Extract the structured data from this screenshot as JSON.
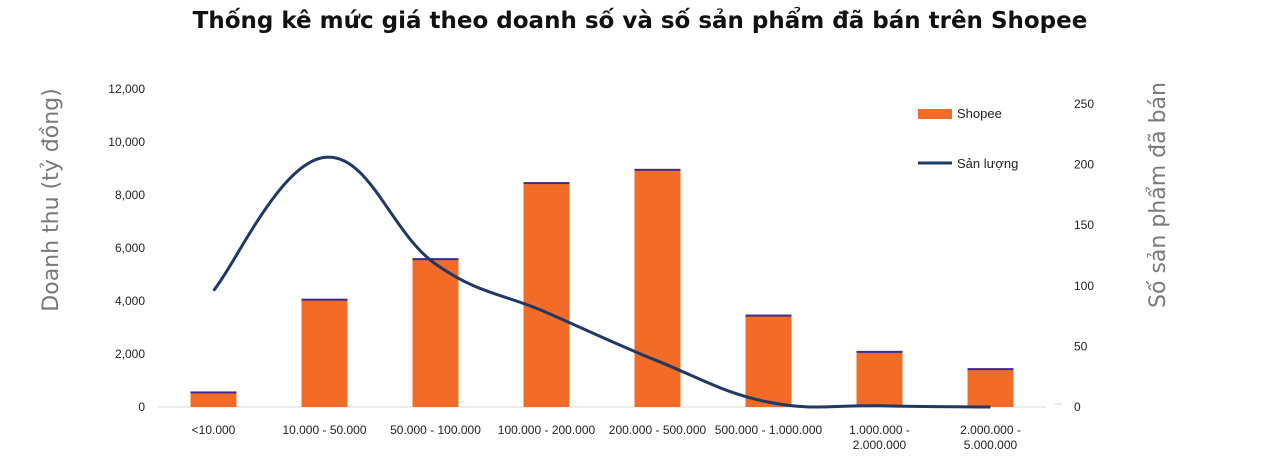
{
  "chart_data": {
    "type": "bar",
    "title": "Thống kê mức giá theo doanh số và số sản phẩm đã bán trên Shopee",
    "categories": [
      "<10.000",
      "10.000 - 50.000",
      "50.000 - 100.000",
      "100.000 - 200.000",
      "200.000 - 500.000",
      "500.000 - 1.000.000",
      "1.000.000 - 2.000.000",
      "2.000.000 - 5.000.000"
    ],
    "category_lines": [
      [
        "<10.000"
      ],
      [
        "10.000 - 50.000"
      ],
      [
        "50.000 - 100.000"
      ],
      [
        "100.000 - 200.000"
      ],
      [
        "200.000 - 500.000"
      ],
      [
        "500.000 - 1.000.000"
      ],
      [
        "1.000.000 -",
        "2.000.000"
      ],
      [
        "2.000.000 -",
        "5.000.000"
      ]
    ],
    "ylabel": "Doanh thu (tỷ đồng)",
    "y2label": "Số sản phẩm đã bán",
    "ylim": [
      0,
      12000
    ],
    "y2lim": [
      0,
      250
    ],
    "yticks": [
      0,
      2000,
      4000,
      6000,
      8000,
      10000,
      12000
    ],
    "ytick_labels": [
      "0",
      "2,000",
      "4,000",
      "6,000",
      "8,000",
      "10,000",
      "12,000"
    ],
    "y2ticks": [
      0,
      50,
      100,
      150,
      200,
      250
    ],
    "y2tick_labels": [
      "0",
      "50",
      "100",
      "150",
      "200",
      "250"
    ],
    "legend_position": "top-right",
    "series": [
      {
        "name": "Shopee",
        "type": "bar",
        "axis": "left",
        "color": "#f36c27",
        "values": [
          550,
          4050,
          5580,
          8450,
          8950,
          3450,
          2080,
          1430
        ]
      },
      {
        "name": "Sản lượng",
        "type": "line",
        "axis": "right",
        "color": "#1f3864",
        "values": [
          96,
          206,
          118,
          78,
          38,
          4,
          1,
          0
        ]
      }
    ]
  }
}
